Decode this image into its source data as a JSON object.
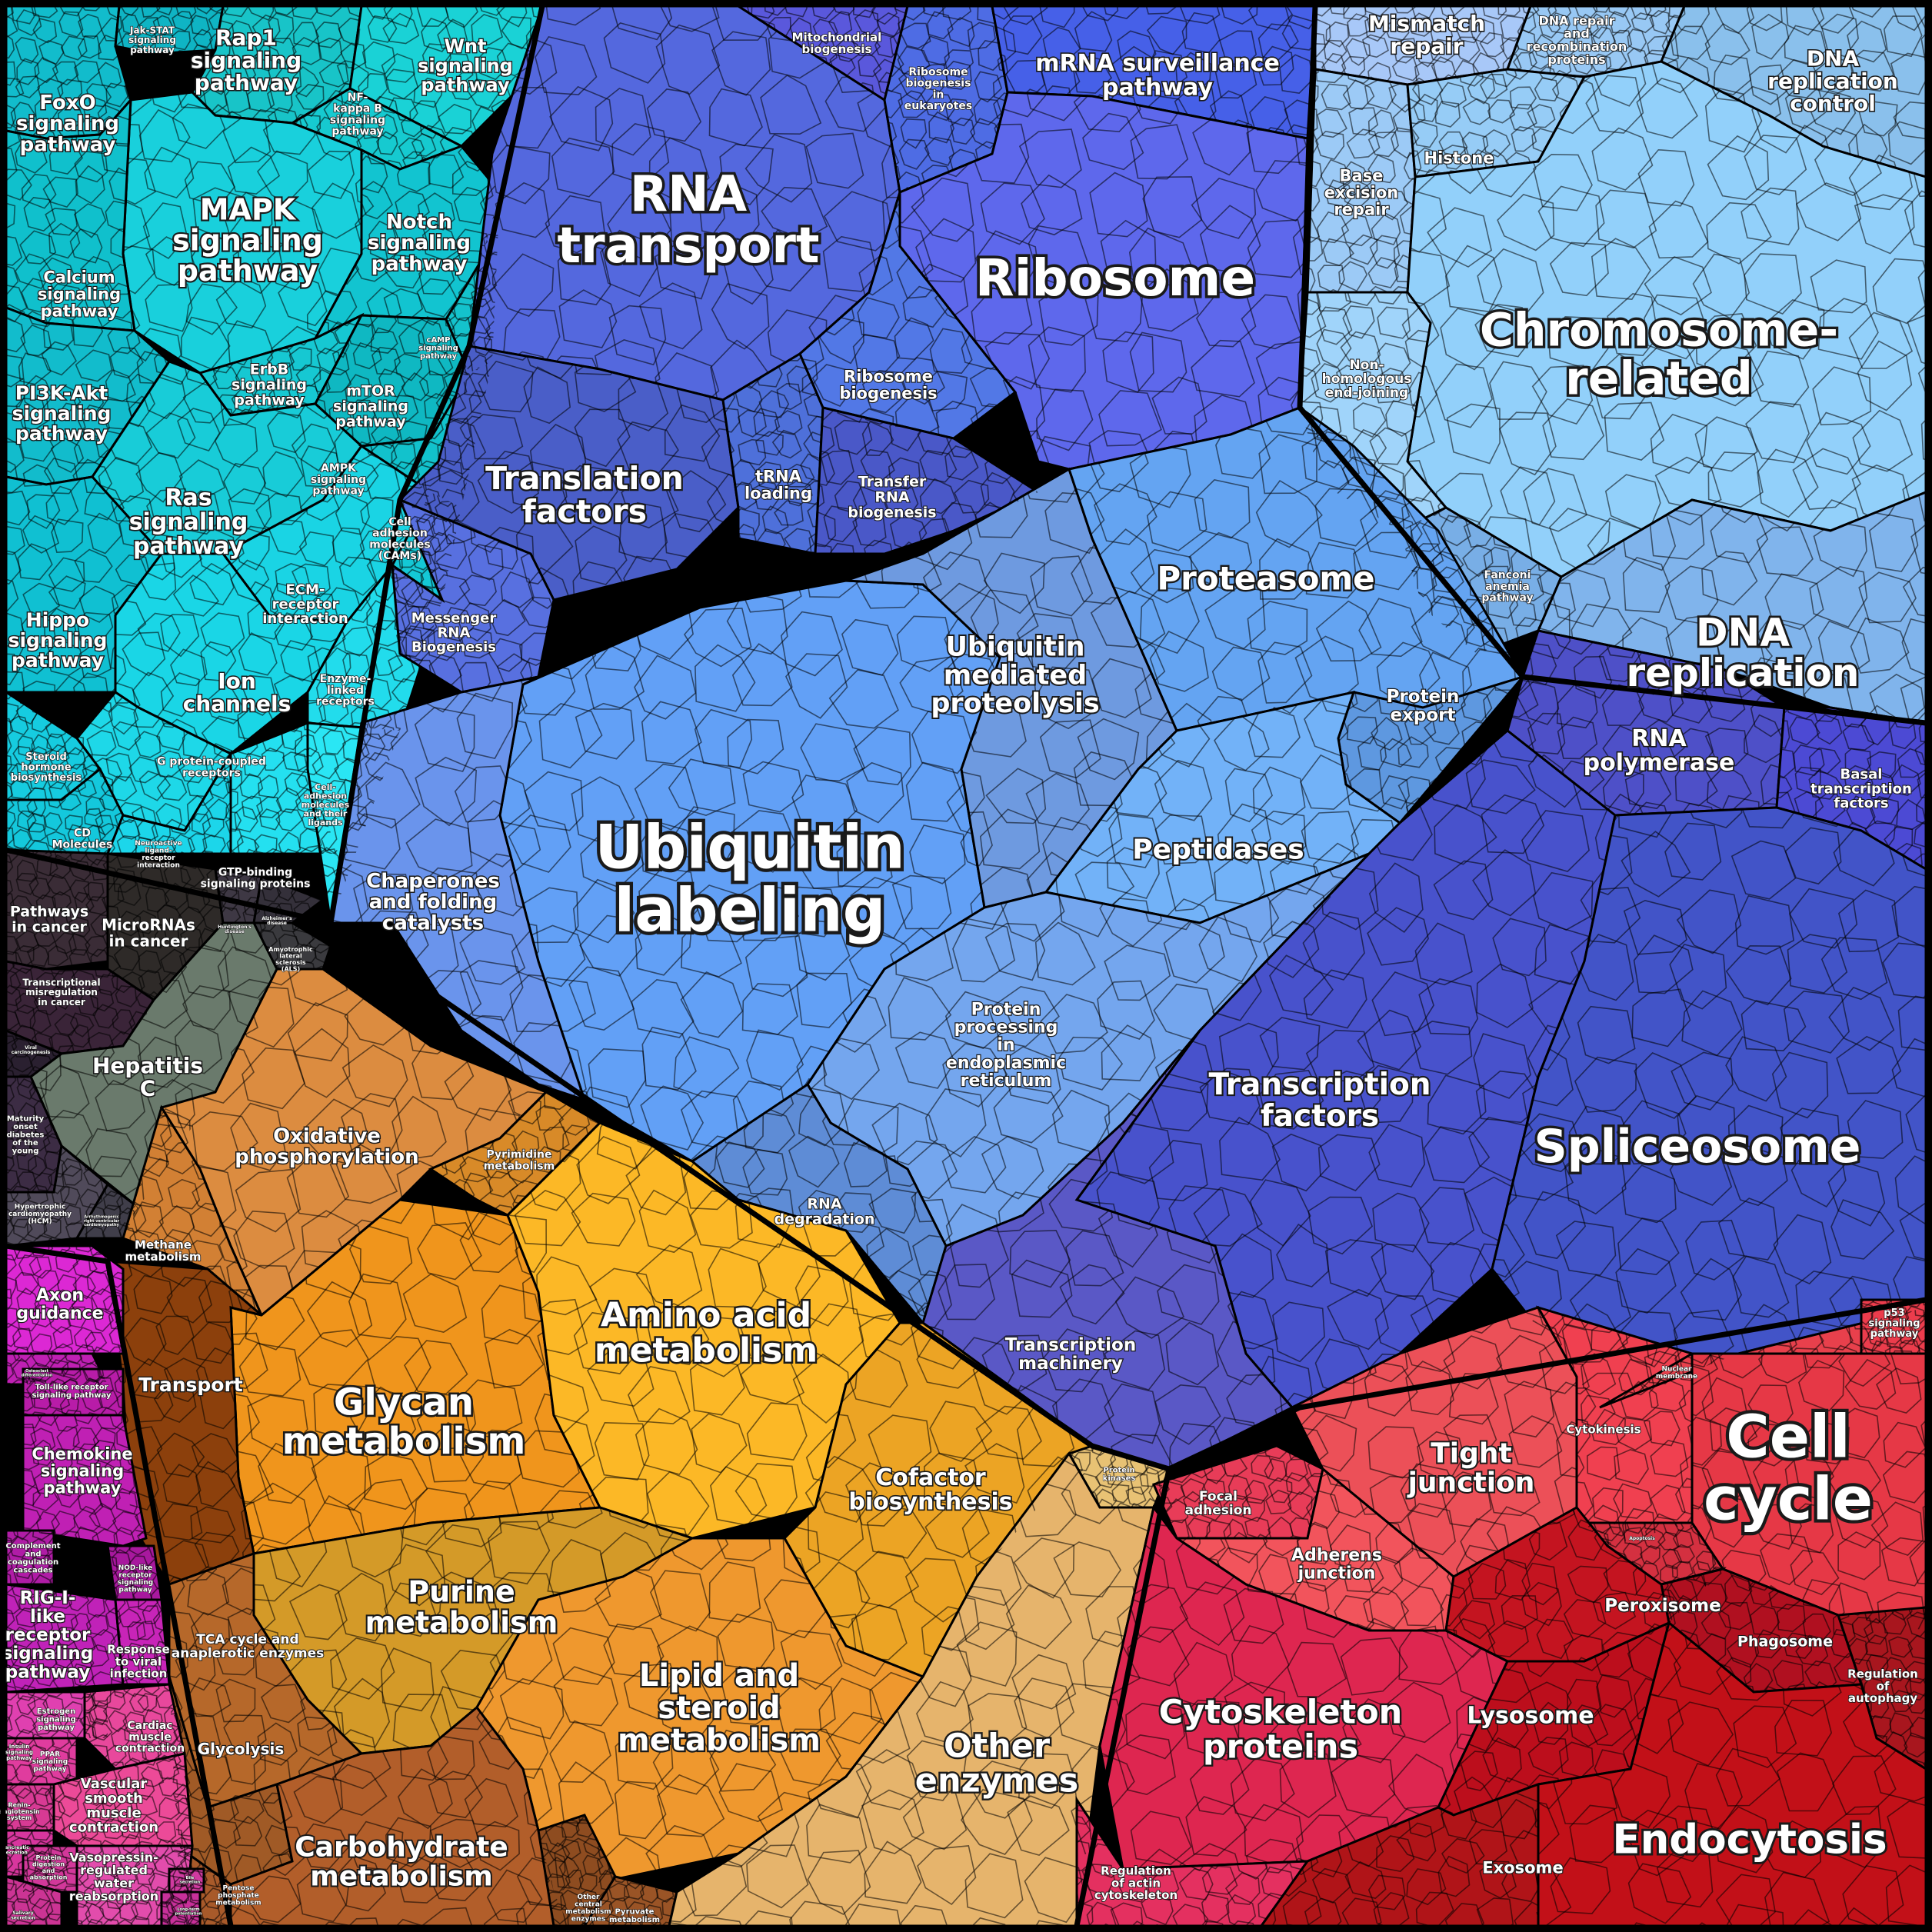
{
  "colors": {
    "signaling": "#10c8d4",
    "signaling_light": "#20dde8",
    "rna": "#5068e0",
    "ubiquitin": "#62a0f6",
    "chromatin": "#8fcaf8",
    "transcription": "#4a52cc",
    "cancer": "#3a3040",
    "hepatitis": "#6c7a70",
    "oxidative": "#dc8c38",
    "amino": "#fcb828",
    "glycan": "#f29818",
    "carbohydrate": "#b0602a",
    "lipid": "#f09a2c",
    "other_enzymes": "#e8b870",
    "cell_motility": "#d42a6a",
    "membrane": "#e83048",
    "cellcycle": "#e83a48",
    "endocytosis": "#c01020",
    "immune": "#b020b8",
    "magenta": "#e040c8"
  },
  "regions": [
    {
      "id": "foxo",
      "label": "FoxO\nsignaling\npathway",
      "color": "#12bccc"
    },
    {
      "id": "jak",
      "label": "Jak-STAT\nsignaling\npathway",
      "color": "#0fb4c4"
    },
    {
      "id": "rap1",
      "label": "Rap1\nsignaling\npathway",
      "color": "#18c4c8"
    },
    {
      "id": "wnt",
      "label": "Wnt\nsignaling\npathway",
      "color": "#1ad2d6"
    },
    {
      "id": "nfkb",
      "label": "NF-\nkappa B\nsignaling\npathway",
      "color": "#16cad0"
    },
    {
      "id": "mapk",
      "label": "MAPK\nsignaling\npathway",
      "color": "#19d0dc"
    },
    {
      "id": "notch",
      "label": "Notch\nsignaling\npathway",
      "color": "#12c4d0"
    },
    {
      "id": "calcium",
      "label": "Calcium\nsignaling\npathway",
      "color": "#10c0cc"
    },
    {
      "id": "erbb",
      "label": "ErbB\nsignaling\npathway",
      "color": "#16c8d2"
    },
    {
      "id": "mtor",
      "label": "mTOR\nsignaling\npathway",
      "color": "#0fb8c2"
    },
    {
      "id": "camp",
      "label": "cAMP\nsignaling\npathway",
      "color": "#14c2cc"
    },
    {
      "id": "pi3k",
      "label": "PI3K-Akt\nsignaling\npathway",
      "color": "#12bccc"
    },
    {
      "id": "ras",
      "label": "Ras\nsignaling\npathway",
      "color": "#18ccd8"
    },
    {
      "id": "ampk",
      "label": "AMPK\nsignaling\npathway",
      "color": "#12c2cc"
    },
    {
      "id": "cams",
      "label": "Cell\nadhesion\nmolecules\n(CAMs)",
      "color": "#14c8d6"
    },
    {
      "id": "ecm",
      "label": "ECM-\nreceptor\ninteraction",
      "color": "#1ad4e4"
    },
    {
      "id": "hippo",
      "label": "Hippo\nsignaling\npathway",
      "color": "#10c0d2"
    },
    {
      "id": "ion",
      "label": "Ion\nchannels",
      "color": "#1ad6e6"
    },
    {
      "id": "enzlinked",
      "label": "Enzyme-\nlinked\nreceptors",
      "color": "#22dcec"
    },
    {
      "id": "gpcr",
      "label": "G protein-coupled\nreceptors",
      "color": "#1ed8e8"
    },
    {
      "id": "steroid",
      "label": "Steroid\nhormone\nbiosynthesis",
      "color": "#16cce0"
    },
    {
      "id": "cd",
      "label": "CD\nMolecules",
      "color": "#14c8dc"
    },
    {
      "id": "neuroactive",
      "label": "Neuroactive\nligand-\nreceptor\ninteraction",
      "color": "#1cd6ea"
    },
    {
      "id": "gtp",
      "label": "GTP-binding\nsignaling proteins",
      "color": "#24e0f0"
    },
    {
      "id": "celladh2",
      "label": "Cell-\nadhesion\nmolecules\nand their\nligands",
      "color": "#2ae6f4"
    },
    {
      "id": "rnatransport",
      "label": "RNA\ntransport",
      "color": "#5468de"
    },
    {
      "id": "mito",
      "label": "Mitochondrial\nbiogenesis",
      "color": "#5a58dc"
    },
    {
      "id": "ribobio_euk",
      "label": "Ribosome\nbiogenesis\nin\neukaryotes",
      "color": "#4e6ce4"
    },
    {
      "id": "mrnasurv",
      "label": "mRNA surveillance\npathway",
      "color": "#4660e8"
    },
    {
      "id": "ribosome",
      "label": "Ribosome",
      "color": "#5e68ec"
    },
    {
      "id": "translation",
      "label": "Translation\nfactors",
      "color": "#4a5ec8"
    },
    {
      "id": "trna",
      "label": "tRNA\nloading",
      "color": "#4e70da"
    },
    {
      "id": "ribobio",
      "label": "Ribosome\nbiogenesis",
      "color": "#5278e6"
    },
    {
      "id": "transfer",
      "label": "Transfer\nRNA\nbiogenesis",
      "color": "#4a58c8"
    },
    {
      "id": "messenger",
      "label": "Messenger\nRNA\nBiogenesis",
      "color": "#5870e0"
    },
    {
      "id": "mismatch",
      "label": "Mismatch\nrepair",
      "color": "#a8c8f8"
    },
    {
      "id": "dnarepair",
      "label": "DNA repair\nand\nrecombination\nproteins",
      "color": "#98c8f4"
    },
    {
      "id": "dnacontrol",
      "label": "DNA\nreplication\ncontrol",
      "color": "#8ac0ec"
    },
    {
      "id": "ber",
      "label": "Base\nexcision\nrepair",
      "color": "#9ccaf6"
    },
    {
      "id": "histone",
      "label": "Histone",
      "color": "#96ccf6"
    },
    {
      "id": "chromosome",
      "label": "Chromosome-\nrelated",
      "color": "#92d0fa"
    },
    {
      "id": "nhej",
      "label": "Non-\nhomologous\nend-joining",
      "color": "#a0d4fa"
    },
    {
      "id": "fanconi",
      "label": "Fanconi\nanemia\npathway",
      "color": "#78aee6"
    },
    {
      "id": "dnarep",
      "label": "DNA\nreplication",
      "color": "#80b4ec"
    },
    {
      "id": "ubiquitin",
      "label": "Ubiquitin\nlabeling",
      "color": "#62a0f6"
    },
    {
      "id": "chaperones",
      "label": "Chaperones\nand folding\ncatalysts",
      "color": "#6a94ec"
    },
    {
      "id": "umprot",
      "label": "Ubiquitin\nmediated\nproteolysis",
      "color": "#6e9ae0"
    },
    {
      "id": "proteasome",
      "label": "Proteasome",
      "color": "#64a4f2"
    },
    {
      "id": "pexport",
      "label": "Protein\nexport",
      "color": "#5e98e0"
    },
    {
      "id": "peptidases",
      "label": "Peptidases",
      "color": "#72b2f8"
    },
    {
      "id": "erproc",
      "label": "Protein\nprocessing\nin\nendoplasmic\nreticulum",
      "color": "#74a6ee"
    },
    {
      "id": "rnadeg",
      "label": "RNA\ndegradation",
      "color": "#5e8cd6"
    },
    {
      "id": "rnapol",
      "label": "RNA\npolymerase",
      "color": "#4e50c8"
    },
    {
      "id": "basal",
      "label": "Basal\ntranscription\nfactors",
      "color": "#4c4ad4"
    },
    {
      "id": "tfactors",
      "label": "Transcription\nfactors",
      "color": "#4852cc"
    },
    {
      "id": "spliceosome",
      "label": "Spliceosome",
      "color": "#4254c8"
    },
    {
      "id": "tmachinery",
      "label": "Transcription\nmachinery",
      "color": "#5a58c6"
    },
    {
      "id": "cancer",
      "label": "Pathways\nin cancer",
      "color": "#3a2c36"
    },
    {
      "id": "microrna",
      "label": "MicroRNAs\nin cancer",
      "color": "#2e2a28"
    },
    {
      "id": "huntington",
      "label": "Huntington's\ndisease",
      "color": "#3e3844"
    },
    {
      "id": "alzheimers",
      "label": "Alzheimer's\ndisease",
      "color": "#34303a"
    },
    {
      "id": "als",
      "label": "Amyotrophic\nlateral\nsclerosis\n(ALS)",
      "color": "#3a3a3e"
    },
    {
      "id": "transmis",
      "label": "Transcriptional\nmisregulation\nin cancer",
      "color": "#3a2438"
    },
    {
      "id": "viralcarc",
      "label": "Viral\ncarcinogenesis",
      "color": "#2a2030"
    },
    {
      "id": "hepc",
      "label": "Hepatitis\nC",
      "color": "#6a7a6c"
    },
    {
      "id": "mody",
      "label": "Maturity\nonset\ndiabetes\nof the\nyoung",
      "color": "#3c2c44"
    },
    {
      "id": "hcm",
      "label": "Hypertrophic\ncardiomyopathy\n(HCM)",
      "color": "#504a5a"
    },
    {
      "id": "arvc",
      "label": "Arrhythmogenic\nright ventricular\ncardiomyopathy",
      "color": "#403e4a"
    },
    {
      "id": "oxphos",
      "label": "Oxidative\nphosphorylation",
      "color": "#dc8c40"
    },
    {
      "id": "pyrimidine",
      "label": "Pyrimidine\nmetabolism",
      "color": "#d88a28"
    },
    {
      "id": "methane",
      "label": "Methane\nmetabolism",
      "color": "#d28034"
    },
    {
      "id": "glycan",
      "label": "Glycan\nmetabolism",
      "color": "#f0951c"
    },
    {
      "id": "amino",
      "label": "Amino acid\nmetabolism",
      "color": "#fcb826"
    },
    {
      "id": "cofactor",
      "label": "Cofactor\nbiosynthesis",
      "color": "#eca424"
    },
    {
      "id": "transport",
      "label": "Transport",
      "color": "#8c400c"
    },
    {
      "id": "purine",
      "label": "Purine\nmetabolism",
      "color": "#d49a28"
    },
    {
      "id": "lipid",
      "label": "Lipid and\nsteroid\nmetabolism",
      "color": "#ef982e"
    },
    {
      "id": "tca",
      "label": "TCA cycle and\nanaplerotic enzymes",
      "color": "#b6682a"
    },
    {
      "id": "glycolysis",
      "label": "Glycolysis",
      "color": "#a05a26"
    },
    {
      "id": "carbo",
      "label": "Carbohydrate\nmetabolism",
      "color": "#b25e2a"
    },
    {
      "id": "pentose",
      "label": "Pentose\nphosphate\nmetabolism",
      "color": "#a85a2a"
    },
    {
      "id": "othercentral",
      "label": "Other\ncentral\nmetabolism\nenzymes",
      "color": "#8e4c20"
    },
    {
      "id": "pyruvate",
      "label": "Pyruvate\nmetabolism",
      "color": "#9a5426"
    },
    {
      "id": "pkinases",
      "label": "Protein\nkinases",
      "color": "#e8c274"
    },
    {
      "id": "otherenz",
      "label": "Other\nenzymes",
      "color": "#e6b46c"
    },
    {
      "id": "axon",
      "label": "Axon\nguidance",
      "color": "#dc28d4"
    },
    {
      "id": "osteoclast",
      "label": "Osteoclast\ndifferentiation",
      "color": "#c020b4"
    },
    {
      "id": "tlr",
      "label": "Toll-like receptor\nsignaling pathway",
      "color": "#b81ca8"
    },
    {
      "id": "chemokine",
      "label": "Chemokine\nsignaling\npathway",
      "color": "#c020b4"
    },
    {
      "id": "complement",
      "label": "Complement\nand\ncoagulation\ncascades",
      "color": "#b01ca6"
    },
    {
      "id": "nod",
      "label": "NOD-like\nreceptor\nsignaling\npathway",
      "color": "#a8189e"
    },
    {
      "id": "rigi",
      "label": "RIG-I-\nlike\nreceptor\nsignaling\npathway",
      "color": "#c022b8"
    },
    {
      "id": "viralresp",
      "label": "Response\nto viral\ninfection",
      "color": "#c824b8"
    },
    {
      "id": "estrogen",
      "label": "Estrogen\nsignaling\npathway",
      "color": "#e040b0"
    },
    {
      "id": "ppar",
      "label": "PPAR\nsignaling\npathway",
      "color": "#e03c9e"
    },
    {
      "id": "insulin",
      "label": "Insulin\nsignaling\npathway",
      "color": "#e03ca8"
    },
    {
      "id": "cardiac",
      "label": "Cardiac\nmuscle\ncontraction",
      "color": "#e8489c"
    },
    {
      "id": "renin",
      "label": "Renin-\nangiotensin\nsystem",
      "color": "#d83a94"
    },
    {
      "id": "vascular",
      "label": "Vascular\nsmooth\nmuscle\ncontraction",
      "color": "#ec4a98"
    },
    {
      "id": "pancreatic",
      "label": "Pancreatic\nsecretion",
      "color": "#d8369e"
    },
    {
      "id": "digestion",
      "label": "Protein\ndigestion\nand\nabsorption",
      "color": "#d2389a"
    },
    {
      "id": "vasopressin",
      "label": "Vasopressin-\nregulated\nwater\nreabsorption",
      "color": "#e24cac"
    },
    {
      "id": "salivary",
      "label": "Salivary\nsecretion",
      "color": "#cc3494"
    },
    {
      "id": "bile",
      "label": "Bile\nsecretion",
      "color": "#d03aa0"
    },
    {
      "id": "longterm",
      "label": "Long-term\npotentiation",
      "color": "#c8309a"
    },
    {
      "id": "focal",
      "label": "Focal\nadhesion",
      "color": "#e83c58"
    },
    {
      "id": "tight",
      "label": "Tight\njunction",
      "color": "#ec5058"
    },
    {
      "id": "adherens",
      "label": "Adherens\njunction",
      "color": "#f2545c"
    },
    {
      "id": "cytokinesis",
      "label": "Cytokinesis",
      "color": "#f04050"
    },
    {
      "id": "nuclear",
      "label": "Nuclear\nmembrane",
      "color": "#e8404c"
    },
    {
      "id": "p53",
      "label": "p53\nsignaling\npathway",
      "color": "#ec3c4c"
    },
    {
      "id": "cellcycle",
      "label": "Cell\ncycle",
      "color": "#e63846"
    },
    {
      "id": "apoptosis",
      "label": "Apoptosis",
      "color": "#d43040"
    },
    {
      "id": "cytoskel",
      "label": "Cytoskeleton\nproteins",
      "color": "#de2650"
    },
    {
      "id": "actin",
      "label": "Regulation\nof actin\ncytoskeleton",
      "color": "#e43060"
    },
    {
      "id": "peroxisome",
      "label": "Peroxisome",
      "color": "#c41420"
    },
    {
      "id": "phagosome",
      "label": "Phagosome",
      "color": "#b01020"
    },
    {
      "id": "autophagy",
      "label": "Regulation\nof\nautophagy",
      "color": "#a8161e"
    },
    {
      "id": "lysosome",
      "label": "Lysosome",
      "color": "#bc0e1c"
    },
    {
      "id": "endocytosis",
      "label": "Endocytosis",
      "color": "#c21018"
    },
    {
      "id": "exosome",
      "label": "Exosome",
      "color": "#b01418"
    }
  ]
}
